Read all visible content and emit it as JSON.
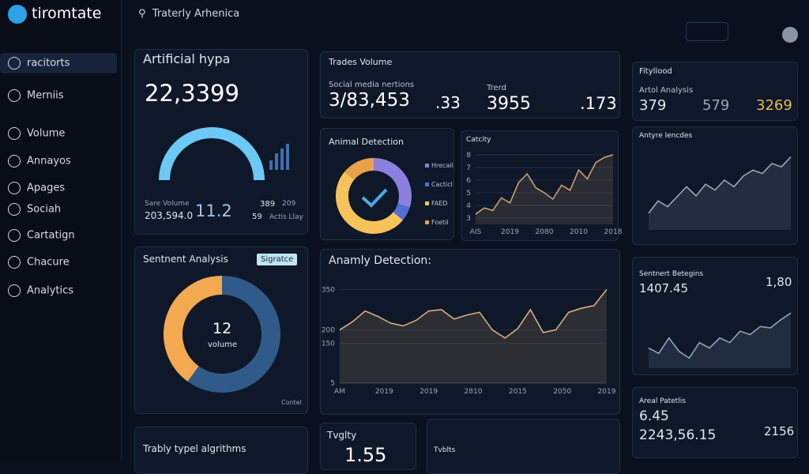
{
  "sidebar": {
    "logo": "tiromtate",
    "items": [
      "racitorts",
      "Merniis",
      "Volume",
      "Annayos",
      "Apages",
      "Sociah",
      "Cartatign",
      "Chacure",
      "Analytics"
    ]
  },
  "search": "Traterly Arhenica",
  "hype": {
    "title": "Artificial hypa",
    "value": "22,3399",
    "sub_label": "Sare Volume",
    "sub_value": "203,594.0",
    "delta": "11.2",
    "stats": [
      "389",
      "209",
      "59",
      "Actis Llay"
    ]
  },
  "sentiment": {
    "title": "Sentnent Analysis",
    "badge": "Sigratce",
    "center_value": "12",
    "center_label": "volume",
    "footer": "Contel",
    "chart": {
      "type": "donut",
      "values": [
        60,
        40
      ],
      "colors": [
        "#2f5a8a",
        "#f2a950"
      ]
    }
  },
  "algorithms": {
    "title": "Trably typel algrithms"
  },
  "trades": {
    "title": "Trades Volume",
    "left_label": "Social media nertions",
    "left_value": "3/83,453",
    "left_delta": ".33",
    "right_label": "Trerd",
    "right_value": "3955",
    "right_delta": ".173"
  },
  "animal": {
    "title": "Animal Detection",
    "chart": {
      "type": "donut",
      "values": [
        30,
        6,
        50,
        14
      ],
      "colors": [
        "#8b7fe0",
        "#4f6fd6",
        "#f6c35a",
        "#e8a24a"
      ],
      "labels": [
        "Hrecail",
        "Cacticl",
        "FAED",
        "Foetil"
      ]
    }
  },
  "catcity": {
    "title": "Catcity",
    "chart": {
      "type": "line",
      "color": "#c9a070",
      "ylim": [
        2.5,
        8.5
      ],
      "yticks": [
        3,
        4,
        5,
        6,
        7,
        8
      ],
      "x_labels": [
        "AIS",
        "2019",
        "2080",
        "2010",
        "2018"
      ],
      "values": [
        3.3,
        3.8,
        3.6,
        4.6,
        4.2,
        5.8,
        6.5,
        5.4,
        5.0,
        4.5,
        5.6,
        5.2,
        6.8,
        6.1,
        7.4,
        7.8,
        8.0
      ]
    }
  },
  "anomaly": {
    "title": "Anamly Detection:",
    "chart": {
      "type": "line",
      "color": "#d9b07a",
      "ylim": [
        0,
        380
      ],
      "yticks": [
        5,
        150,
        200,
        350
      ],
      "x_labels": [
        "AM",
        "2019",
        "2019",
        "2810",
        "2015",
        "2050",
        "2019"
      ],
      "values": [
        200,
        230,
        270,
        250,
        225,
        215,
        235,
        270,
        275,
        240,
        255,
        265,
        200,
        170,
        205,
        275,
        190,
        200,
        265,
        280,
        290,
        350
      ]
    }
  },
  "fityllood": {
    "title": "Fityllood",
    "label": "Artol Analysis",
    "values": [
      "379",
      "579",
      "3269"
    ]
  },
  "antyre": {
    "title": "Antyre lencdes",
    "chart": {
      "type": "line",
      "color": "#9aa6b8",
      "ylim": [
        0,
        10
      ],
      "values": [
        2,
        3.5,
        2.8,
        4,
        5.2,
        4.1,
        5.5,
        4.8,
        6,
        5.2,
        6.5,
        7.2,
        6.8,
        8,
        7.6,
        8.8
      ]
    }
  },
  "sentnert": {
    "title": "Sentnert Betegins",
    "value": "1407.45",
    "side": "1,80",
    "chart": {
      "type": "line",
      "color": "#8fa3bd",
      "ylim": [
        0,
        10
      ],
      "values": [
        3,
        2.2,
        4.5,
        2.5,
        1.5,
        3.8,
        3,
        4.5,
        3.8,
        5.5,
        5,
        6.2,
        6,
        7.2,
        8.2
      ]
    }
  },
  "areal": {
    "title": "Areal Patetlis",
    "value": "6.45",
    "sub": "2243,56.15",
    "side": "2156"
  },
  "tvglty": {
    "title": "Tvglty",
    "value": "1.55"
  },
  "tvblts": {
    "title": "Tvblts"
  }
}
